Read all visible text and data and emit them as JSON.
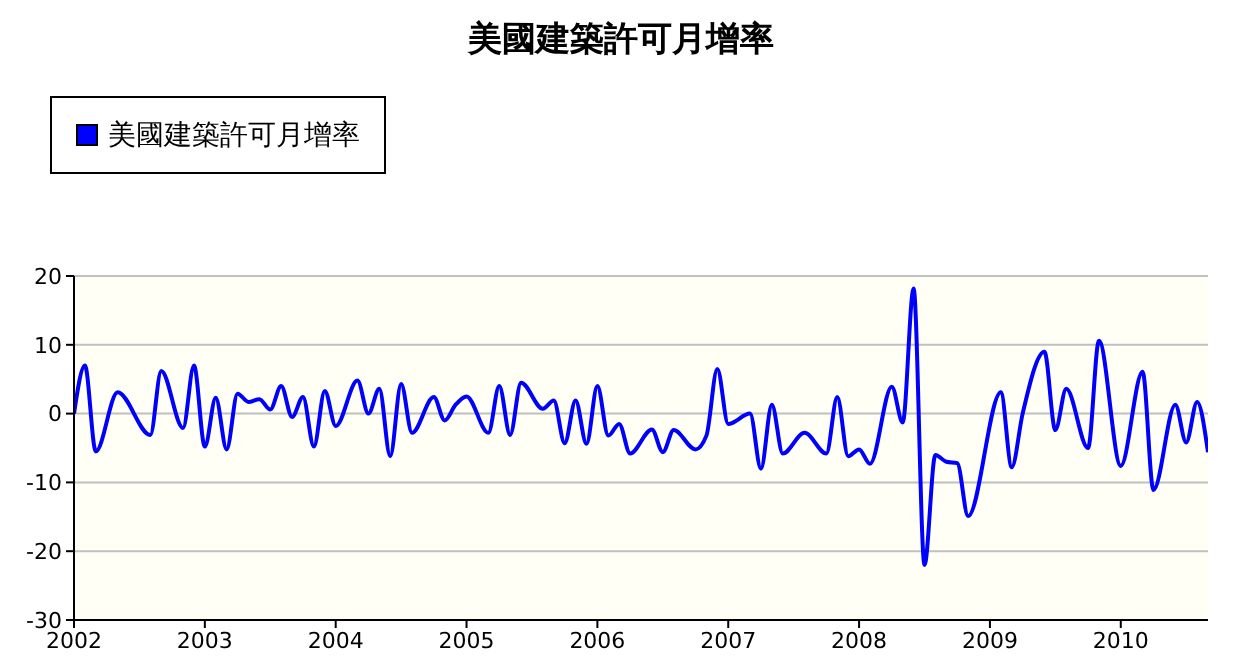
{
  "chart_data": {
    "type": "line",
    "title": "美國建築許可月增率",
    "x": [
      "2002-01",
      "2002-02",
      "2002-03",
      "2002-05",
      "2002-08",
      "2002-09",
      "2002-11",
      "2002-12",
      "2003-01",
      "2003-02",
      "2003-03",
      "2003-04",
      "2003-05",
      "2003-06",
      "2003-07",
      "2003-08",
      "2003-09",
      "2003-10",
      "2003-11",
      "2003-12",
      "2004-01",
      "2004-03",
      "2004-04",
      "2004-05",
      "2004-06",
      "2004-07",
      "2004-08",
      "2004-10",
      "2004-11",
      "2004-12",
      "2005-01",
      "2005-03",
      "2005-04",
      "2005-05",
      "2005-06",
      "2005-08",
      "2005-09",
      "2005-10",
      "2005-11",
      "2005-12",
      "2006-01",
      "2006-02",
      "2006-03",
      "2006-04",
      "2006-06",
      "2006-07",
      "2006-08",
      "2006-10",
      "2006-11",
      "2006-12",
      "2007-01",
      "2007-03",
      "2007-04",
      "2007-05",
      "2007-06",
      "2007-08",
      "2007-10",
      "2007-11",
      "2007-12",
      "2008-01",
      "2008-02",
      "2008-04",
      "2008-05",
      "2008-06",
      "2008-07",
      "2008-08",
      "2008-09",
      "2008-10",
      "2008-11",
      "2009-02",
      "2009-03",
      "2009-04",
      "2009-06",
      "2009-07",
      "2009-08",
      "2009-10",
      "2009-11",
      "2010-01",
      "2010-03",
      "2010-04",
      "2010-06",
      "2010-07",
      "2010-08",
      "2010-09"
    ],
    "series": [
      {
        "name": "美國建築許可月增率",
        "color": "#0000ff",
        "values": [
          0,
          7,
          -5.5,
          3.1,
          -3.1,
          6.2,
          -2.1,
          7,
          -4.8,
          2.3,
          -5.2,
          2.9,
          1.7,
          2.1,
          0.6,
          4,
          -0.5,
          2.4,
          -4.8,
          3.3,
          -1.8,
          4.8,
          0,
          3.6,
          -6.2,
          4.3,
          -2.8,
          2.4,
          -1,
          1.3,
          2.5,
          -2.8,
          4,
          -3.1,
          4.5,
          0.7,
          1.9,
          -4.3,
          1.9,
          -4.4,
          4,
          -3.2,
          -1.5,
          -5.8,
          -2.3,
          -5.6,
          -2.4,
          -5.2,
          -3.2,
          6.5,
          -1.5,
          0,
          -8,
          1.3,
          -5.8,
          -2.8,
          -5.8,
          2.4,
          -6.2,
          -5.2,
          -7.3,
          3.9,
          -1.3,
          18.2,
          -22,
          -6,
          -7,
          -7.2,
          -14.9,
          3.1,
          -7.8,
          0,
          9,
          -2.4,
          3.6,
          -5,
          10.6,
          -7.6,
          6.1,
          -11.1,
          1.3,
          -4.2,
          1.7,
          -5.6
        ]
      }
    ],
    "xlim": [
      "2002-01",
      "2010-09"
    ],
    "xticks": [
      "2002",
      "2003",
      "2004",
      "2005",
      "2006",
      "2007",
      "2008",
      "2009",
      "2010"
    ],
    "ylim": [
      -30,
      20
    ],
    "yticks": [
      -30,
      -20,
      -10,
      0,
      10,
      20
    ],
    "grid": "y",
    "legend": "top left",
    "marker": "none",
    "line_style": "solid"
  }
}
